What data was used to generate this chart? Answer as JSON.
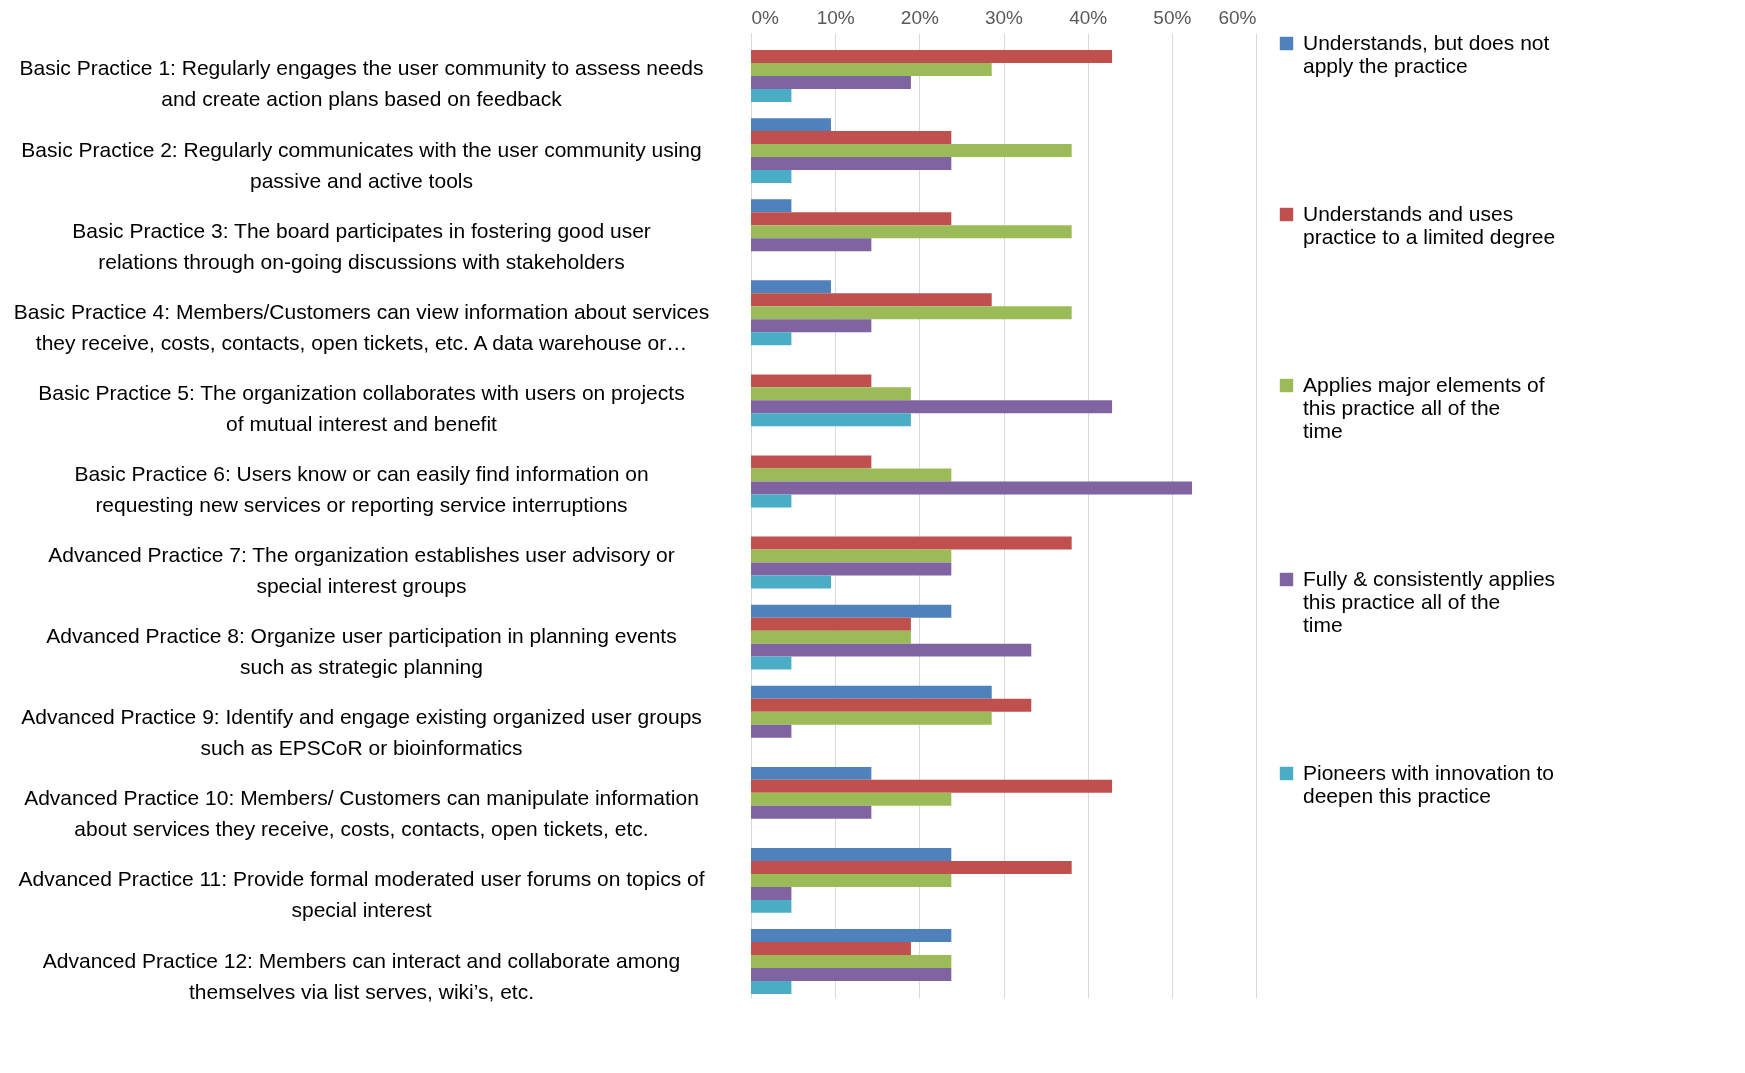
{
  "chart_data": {
    "type": "bar",
    "orientation": "horizontal",
    "categories": [
      "Basic Practice 1:  Regularly engages the user community to assess needs and create action plans based on feedback",
      "Basic Practice 2:  Regularly communicates with the user community using passive and active tools",
      "Basic Practice 3:  The board participates in fostering good user relations through on-going discussions with stakeholders",
      "Basic Practice 4:  Members/Customers can view information about services they receive, costs, contacts, open tickets, etc. A data warehouse or…",
      "Basic Practice 5:  The organization collaborates with users on projects of mutual interest and benefit",
      "Basic Practice 6:  Users know or can easily find information on requesting new services or reporting service interruptions",
      "Advanced Practice 7:  The organization establishes user advisory or special interest groups",
      "Advanced Practice 8:  Organize user participation in planning events such as strategic planning",
      "Advanced Practice 9:  Identify and engage existing organized user groups such as EPSCoR or bioinformatics",
      "Advanced Practice 10:  Members/ Customers can manipulate information about services they receive, costs, contacts, open tickets, etc.",
      "Advanced Practice 11:  Provide formal moderated user forums on topics of special interest",
      "Advanced Practice 12:  Members can interact and collaborate among themselves via list serves, wiki’s, etc."
    ],
    "series": [
      {
        "name": "Understands, but does not apply the practice",
        "color": "#4f81bd",
        "values": [
          0,
          9.5,
          4.8,
          9.5,
          0,
          0,
          0,
          23.8,
          28.6,
          14.3,
          23.8,
          23.8
        ]
      },
      {
        "name": "Understands and uses practice to a limited degree",
        "color": "#c0504d",
        "values": [
          42.9,
          23.8,
          23.8,
          28.6,
          14.3,
          14.3,
          38.1,
          19,
          33.3,
          42.9,
          38.1,
          19
        ]
      },
      {
        "name": "Applies major elements of this practice all of the time",
        "color": "#9bbb59",
        "values": [
          28.6,
          38.1,
          38.1,
          38.1,
          19,
          23.8,
          23.8,
          19,
          28.6,
          23.8,
          23.8,
          23.8
        ]
      },
      {
        "name": "Fully & consistently applies this practice all of the time",
        "color": "#8064a2",
        "values": [
          19,
          23.8,
          14.3,
          14.3,
          42.9,
          52.4,
          23.8,
          33.3,
          4.8,
          14.3,
          4.8,
          23.8
        ]
      },
      {
        "name": "Pioneers with innovation to deepen this practice",
        "color": "#4bacc6",
        "values": [
          4.8,
          4.8,
          0,
          4.8,
          19,
          4.8,
          9.5,
          4.8,
          0,
          0,
          4.8,
          4.8
        ]
      }
    ],
    "xlim": [
      0,
      60
    ],
    "xticks": [
      {
        "value": 0,
        "label": "0%"
      },
      {
        "value": 10,
        "label": "10%"
      },
      {
        "value": 20,
        "label": "20%"
      },
      {
        "value": 30,
        "label": "30%"
      },
      {
        "value": 40,
        "label": "40%"
      },
      {
        "value": 50,
        "label": "50%"
      },
      {
        "value": 60,
        "label": "60%"
      }
    ],
    "grid": "x",
    "legend": "right"
  }
}
